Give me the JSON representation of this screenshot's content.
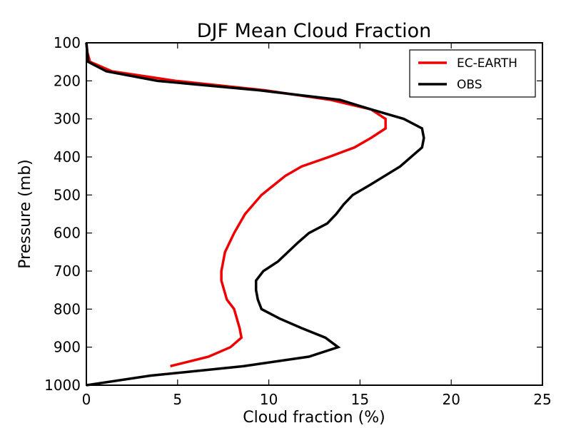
{
  "chart_data": {
    "type": "line",
    "title": "DJF Mean Cloud Fraction",
    "xlabel": "Cloud fraction (%)",
    "ylabel": "Pressure (mb)",
    "xlim": [
      0,
      25
    ],
    "ylim": [
      100,
      1000
    ],
    "y_inverted": true,
    "xticks": [
      0,
      5,
      10,
      15,
      20,
      25
    ],
    "yticks": [
      100,
      200,
      300,
      400,
      500,
      600,
      700,
      800,
      900,
      1000
    ],
    "grid": false,
    "legend": "top-right",
    "series": [
      {
        "name": "EC-EARTH",
        "color": "#ee0000",
        "points": [
          [
            0.0,
            100
          ],
          [
            0.05,
            125
          ],
          [
            0.2,
            150
          ],
          [
            1.4,
            175
          ],
          [
            4.9,
            200
          ],
          [
            9.8,
            225
          ],
          [
            13.4,
            250
          ],
          [
            15.6,
            275
          ],
          [
            16.4,
            300
          ],
          [
            16.4,
            325
          ],
          [
            15.6,
            350
          ],
          [
            14.7,
            375
          ],
          [
            13.3,
            400
          ],
          [
            11.8,
            425
          ],
          [
            10.9,
            450
          ],
          [
            9.6,
            500
          ],
          [
            8.7,
            550
          ],
          [
            8.1,
            600
          ],
          [
            7.6,
            650
          ],
          [
            7.4,
            700
          ],
          [
            7.4,
            725
          ],
          [
            7.7,
            775
          ],
          [
            8.1,
            800
          ],
          [
            8.4,
            850
          ],
          [
            8.5,
            875
          ],
          [
            7.9,
            900
          ],
          [
            6.7,
            925
          ],
          [
            4.6,
            950
          ]
        ]
      },
      {
        "name": "OBS",
        "color": "#000000",
        "points": [
          [
            0.0,
            100
          ],
          [
            0.05,
            125
          ],
          [
            0.1,
            150
          ],
          [
            1.1,
            175
          ],
          [
            3.9,
            200
          ],
          [
            9.5,
            225
          ],
          [
            13.9,
            250
          ],
          [
            15.6,
            275
          ],
          [
            17.4,
            300
          ],
          [
            18.4,
            325
          ],
          [
            18.5,
            350
          ],
          [
            18.4,
            375
          ],
          [
            17.2,
            425
          ],
          [
            15.5,
            475
          ],
          [
            14.6,
            500
          ],
          [
            14.1,
            525
          ],
          [
            13.7,
            550
          ],
          [
            13.2,
            575
          ],
          [
            12.2,
            600
          ],
          [
            11.6,
            625
          ],
          [
            10.5,
            675
          ],
          [
            9.7,
            700
          ],
          [
            9.3,
            725
          ],
          [
            9.3,
            750
          ],
          [
            9.4,
            775
          ],
          [
            9.6,
            800
          ],
          [
            10.6,
            825
          ],
          [
            11.8,
            850
          ],
          [
            13.1,
            875
          ],
          [
            13.8,
            900
          ],
          [
            12.2,
            925
          ],
          [
            8.6,
            950
          ],
          [
            3.5,
            975
          ],
          [
            0.0,
            1000
          ]
        ]
      }
    ]
  }
}
